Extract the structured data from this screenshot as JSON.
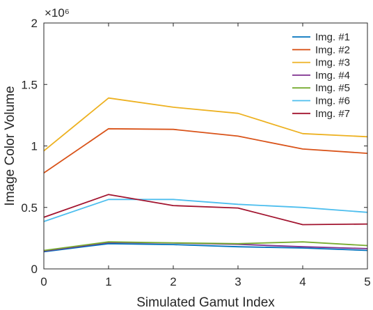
{
  "chart_data": {
    "type": "line",
    "xlabel": "Simulated Gamut Index",
    "ylabel": "Image Color Volume",
    "exponent_label": "×10⁶",
    "x": [
      0,
      1,
      2,
      3,
      4,
      5
    ],
    "xlim": [
      0,
      5
    ],
    "ylim": [
      0,
      2
    ],
    "x_ticks": [
      "0",
      "1",
      "2",
      "3",
      "4",
      "5"
    ],
    "y_ticks": [
      "0",
      "0.5",
      "1",
      "1.5",
      "2"
    ],
    "y_tick_values": [
      0,
      0.5,
      1,
      1.5,
      2
    ],
    "grid": false,
    "box": true,
    "legend_position": "top-right",
    "series": [
      {
        "name": "Img. #1",
        "color": "#0072BD",
        "values": [
          0.14,
          0.205,
          0.198,
          0.18,
          0.17,
          0.15
        ]
      },
      {
        "name": "Img. #2",
        "color": "#D95319",
        "values": [
          0.78,
          1.14,
          1.135,
          1.08,
          0.975,
          0.94
        ]
      },
      {
        "name": "Img. #3",
        "color": "#EDB120",
        "values": [
          0.96,
          1.39,
          1.315,
          1.265,
          1.1,
          1.075
        ]
      },
      {
        "name": "Img. #4",
        "color": "#7E2F8E",
        "values": [
          0.145,
          0.215,
          0.21,
          0.2,
          0.18,
          0.165
        ]
      },
      {
        "name": "Img. #5",
        "color": "#77AC30",
        "values": [
          0.15,
          0.22,
          0.212,
          0.205,
          0.22,
          0.19
        ]
      },
      {
        "name": "Img. #6",
        "color": "#4DBEEE",
        "values": [
          0.385,
          0.565,
          0.565,
          0.525,
          0.5,
          0.46
        ]
      },
      {
        "name": "Img. #7",
        "color": "#A2142F",
        "values": [
          0.42,
          0.605,
          0.515,
          0.495,
          0.36,
          0.365
        ]
      }
    ]
  }
}
